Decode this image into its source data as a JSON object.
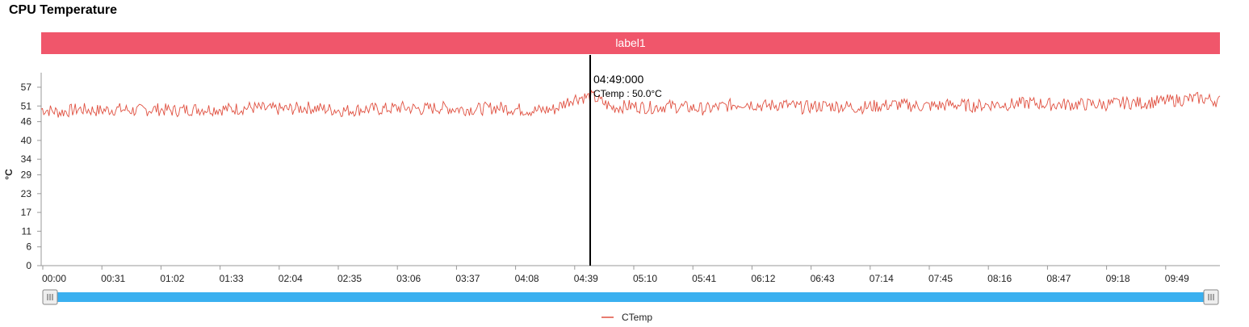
{
  "page": {
    "title": "CPU Temperature"
  },
  "banner": {
    "label": "label1"
  },
  "colors": {
    "banner": "#f0566b",
    "series": "#e05040",
    "slider": "#3ab0f0",
    "cursor": "#000000"
  },
  "tooltip": {
    "time": "04:49:000",
    "text": "CTemp : 50.0°C"
  },
  "chart_data": {
    "type": "line",
    "title": "CPU Temperature",
    "ylabel": "°C",
    "xlabel": "",
    "ylim": [
      0,
      57
    ],
    "y_ticks": [
      "0",
      "6",
      "11",
      "17",
      "23",
      "29",
      "34",
      "40",
      "46",
      "51",
      "57"
    ],
    "x_ticks": [
      "00:00",
      "00:31",
      "01:02",
      "01:33",
      "02:04",
      "02:35",
      "03:06",
      "03:37",
      "04:08",
      "04:39",
      "05:10",
      "05:41",
      "06:12",
      "06:43",
      "07:14",
      "07:45",
      "08:16",
      "08:47",
      "09:18",
      "09:49"
    ],
    "x_range_minutes": [
      0,
      620
    ],
    "cursor_minute": 49.6,
    "legend": {
      "position": "bottom-center",
      "entries": [
        "CTemp"
      ]
    },
    "series": [
      {
        "name": "CTemp",
        "x_minutes": [
          0,
          10,
          20,
          30,
          40,
          50,
          60,
          70,
          80,
          90,
          100,
          110,
          120,
          130,
          140,
          150,
          160,
          170,
          180,
          190,
          200,
          210,
          220,
          230,
          240,
          250,
          260,
          270,
          280,
          290,
          300,
          310,
          320,
          330,
          340,
          350,
          360,
          370,
          380,
          390,
          400,
          410,
          420,
          430,
          440,
          450,
          460,
          470,
          480,
          490,
          500,
          510,
          520,
          530,
          540,
          550,
          560,
          570,
          580,
          590,
          600,
          610,
          620
        ],
        "values": [
          50,
          49,
          50,
          49.5,
          50,
          49.5,
          50,
          49.5,
          50,
          50,
          50,
          50.5,
          50,
          50,
          50.5,
          50,
          49.5,
          50,
          50,
          50.5,
          50,
          50.5,
          50,
          50,
          50.5,
          50,
          49.5,
          50,
          53.5,
          54,
          50.5,
          51,
          50.5,
          51,
          50.5,
          50,
          51,
          52,
          51,
          51.5,
          50.5,
          51,
          51,
          50.5,
          51,
          51.5,
          51,
          51,
          51.5,
          51,
          51.5,
          51.5,
          52,
          51.5,
          51.5,
          51.5,
          51.5,
          52,
          52,
          52.5,
          53,
          53.5,
          52.5
        ]
      }
    ]
  }
}
